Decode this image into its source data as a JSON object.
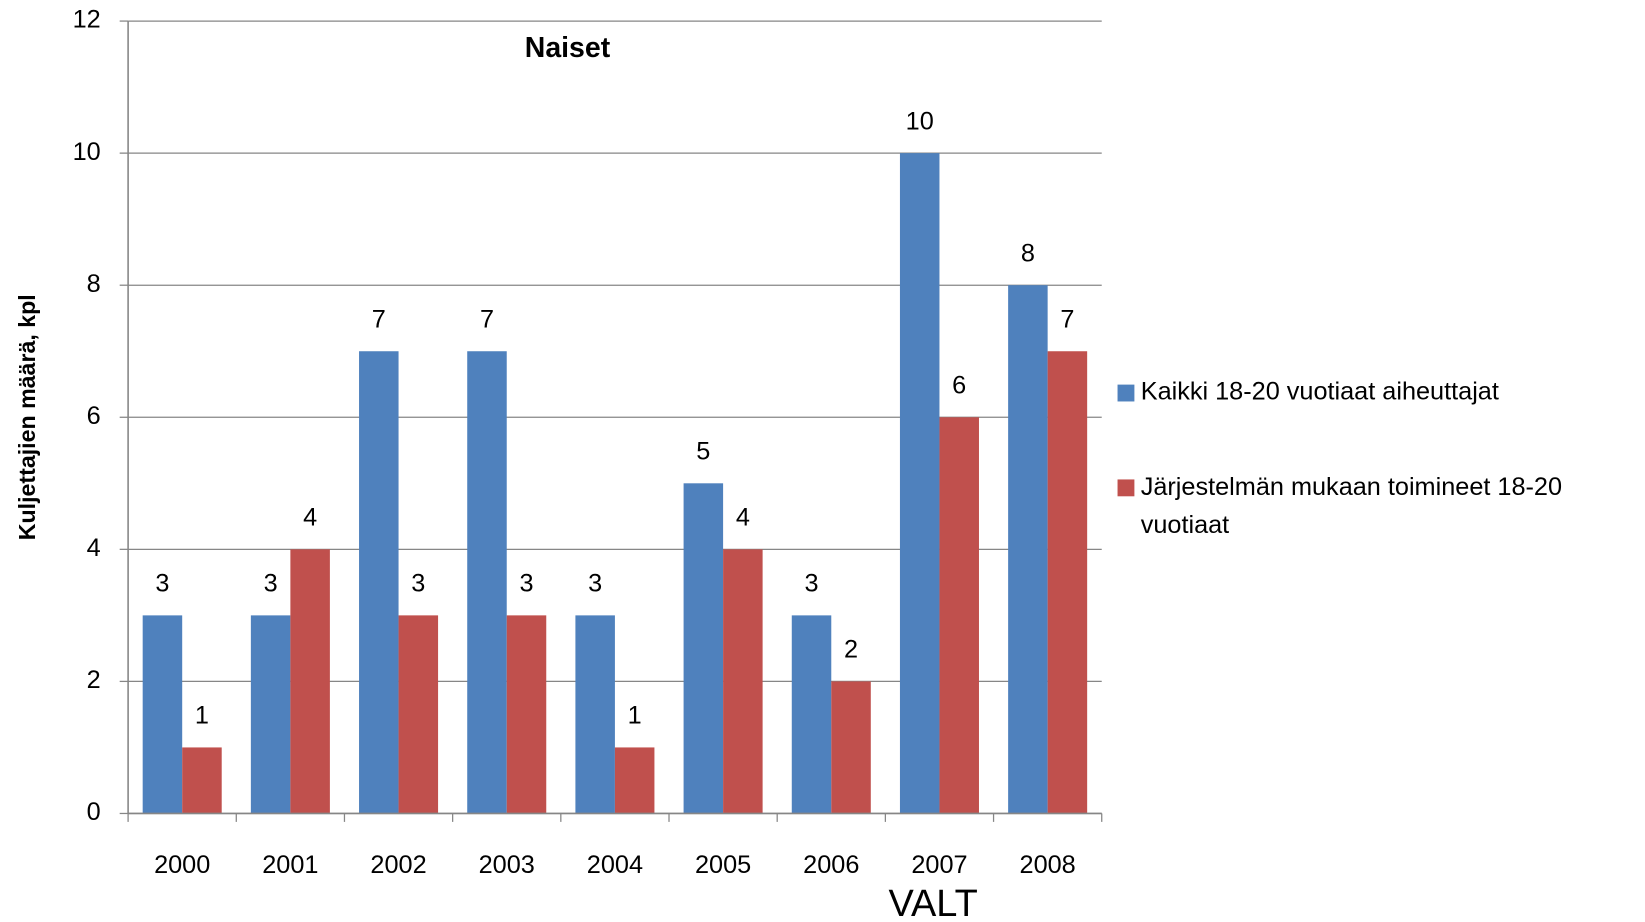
{
  "chart_data": {
    "type": "bar",
    "title": "Naiset",
    "y_label": "Kuljettajien määrä, kpl",
    "annotation": "VALT",
    "categories": [
      "2000",
      "2001",
      "2002",
      "2003",
      "2004",
      "2005",
      "2006",
      "2007",
      "2008"
    ],
    "series": [
      {
        "name": "Kaikki 18-20 vuotiaat aiheuttajat",
        "color": "#4f81bd",
        "values": [
          3,
          3,
          7,
          7,
          3,
          5,
          3,
          10,
          8
        ]
      },
      {
        "name": "Järjestelmän mukaan toimineet 18-20 vuotiaat",
        "color": "#c0504d",
        "values": [
          1,
          4,
          3,
          3,
          1,
          4,
          2,
          6,
          7
        ]
      }
    ],
    "ylim": [
      0,
      12
    ],
    "yticks": [
      0,
      2,
      4,
      6,
      8,
      10,
      12
    ],
    "grid": true,
    "legend": "right"
  }
}
